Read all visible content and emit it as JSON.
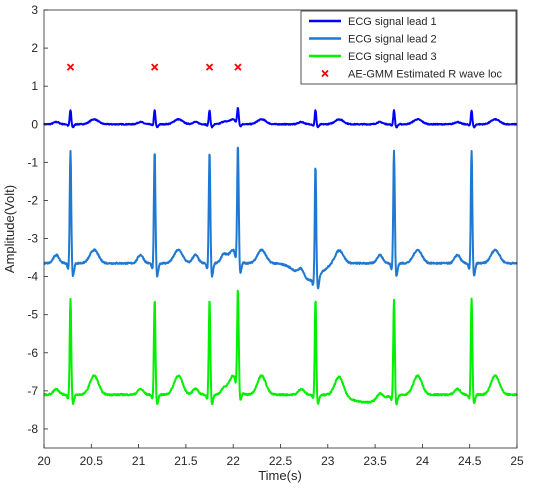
{
  "chart_data": {
    "type": "line",
    "xlabel": "Time(s)",
    "ylabel": "Amplitude(Volt)",
    "xlim": [
      20,
      25
    ],
    "ylim": [
      -8.5,
      3
    ],
    "x_ticks": [
      "20",
      "20.5",
      "21",
      "21.5",
      "22",
      "22.5",
      "23",
      "23.5",
      "24",
      "24.5",
      "25"
    ],
    "y_ticks": [
      "3",
      "2",
      "1",
      "0",
      "-1",
      "-2",
      "-3",
      "-4",
      "-5",
      "-6",
      "-7",
      "-8"
    ],
    "grid": false,
    "legend_position": "top-right",
    "r_peaks_x": [
      20.28,
      21.17,
      21.75,
      22.05,
      22.87,
      23.7,
      24.52
    ],
    "r_marker_y": 1.5,
    "series": [
      {
        "name": "ECG signal lead 1",
        "color": "#0000ff",
        "baseline": 0.0,
        "r_height": 0.38,
        "t_height": 0.13,
        "p_height": 0.06,
        "s_depth": 0.08,
        "noise": 0.025
      },
      {
        "name": "ECG signal lead 2",
        "color": "#1f78d1",
        "baseline": -3.65,
        "r_height": 3.0,
        "t_height": 0.35,
        "p_height": 0.22,
        "s_depth": 0.35,
        "noise": 0.04
      },
      {
        "name": "ECG signal lead 3",
        "color": "#00f000",
        "baseline": -7.1,
        "r_height": 2.55,
        "t_height": 0.5,
        "p_height": 0.15,
        "s_depth": 0.25,
        "noise": 0.04
      }
    ],
    "markers": {
      "name": "AE-GMM Estimated R wave loc",
      "color": "#ff0000",
      "symbol": "x"
    }
  }
}
